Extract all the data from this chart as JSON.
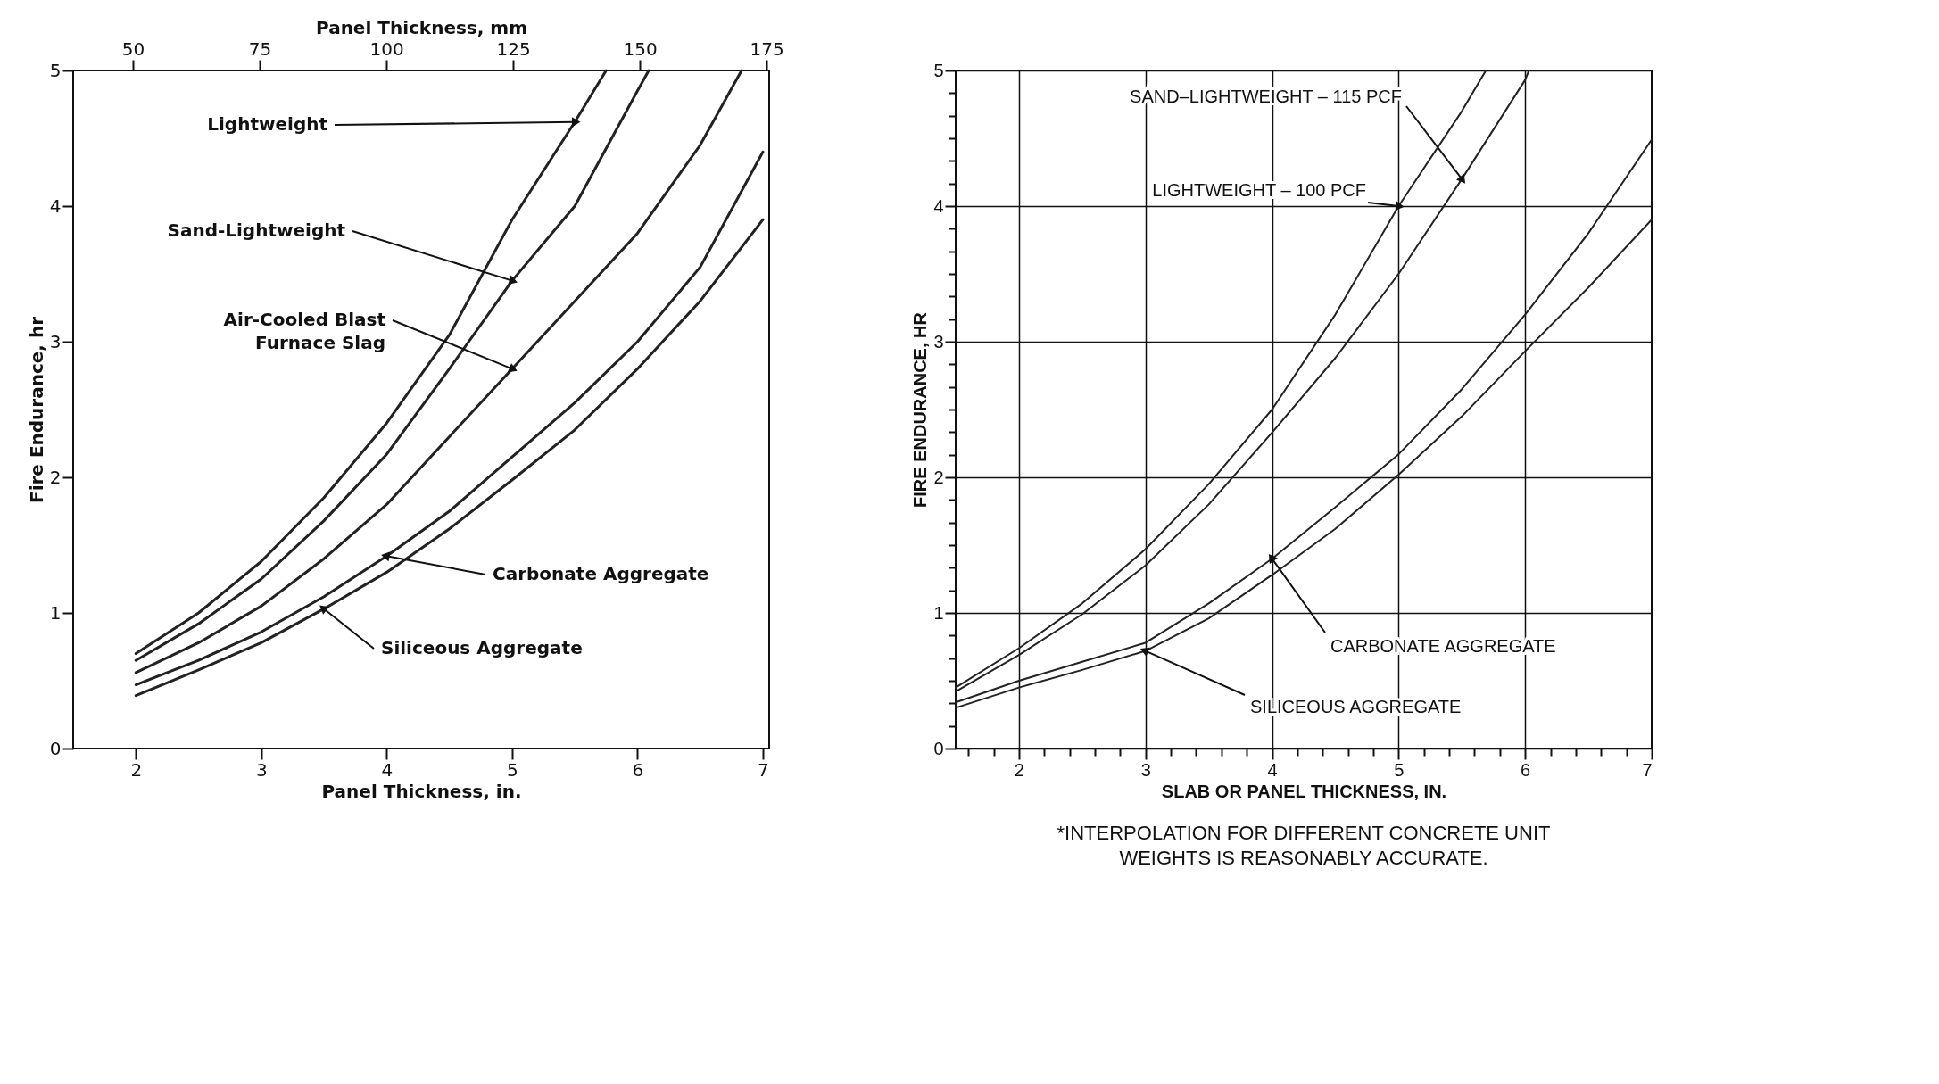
{
  "chart_data": [
    {
      "type": "line",
      "xlabel": "Panel Thickness, in.",
      "ylabel": "Fire Endurance, hr",
      "x2label": "Panel Thickness, mm",
      "xlim": [
        1.5,
        7.05
      ],
      "xticks": [
        2,
        3,
        4,
        5,
        6,
        7
      ],
      "ylim": [
        0,
        5
      ],
      "yticks": [
        0,
        1,
        2,
        3,
        4,
        5
      ],
      "x2lim": [
        38.2,
        175.5
      ],
      "x2ticks": [
        50,
        75,
        100,
        125,
        150,
        175
      ],
      "grid": false,
      "legend": false,
      "marker": "none",
      "line_style": "solid",
      "series": [
        {
          "name": "Lightweight",
          "color": "#222222",
          "x": [
            2,
            2.5,
            3,
            3.5,
            4,
            4.5,
            5,
            5.5,
            5.75
          ],
          "values": [
            0.7,
            1.0,
            1.38,
            1.85,
            2.4,
            3.05,
            3.9,
            4.62,
            5.0
          ]
        },
        {
          "name": "Sand-Lightweight",
          "color": "#222222",
          "x": [
            2,
            2.5,
            3,
            3.5,
            4,
            4.5,
            5,
            5.5,
            6,
            6.09
          ],
          "values": [
            0.65,
            0.92,
            1.25,
            1.68,
            2.17,
            2.8,
            3.45,
            4.0,
            4.85,
            5.0
          ]
        },
        {
          "name": "Air-Cooled Blast Furnace Slag",
          "color": "#222222",
          "x": [
            2,
            2.5,
            3,
            3.5,
            4,
            4.5,
            5,
            5.5,
            6,
            6.5,
            6.83
          ],
          "values": [
            0.56,
            0.78,
            1.05,
            1.4,
            1.8,
            2.3,
            2.8,
            3.3,
            3.8,
            4.45,
            5.0
          ]
        },
        {
          "name": "Carbonate Aggregate",
          "color": "#222222",
          "x": [
            2,
            2.5,
            3,
            3.5,
            4,
            4.5,
            5,
            5.5,
            6,
            6.5,
            7
          ],
          "values": [
            0.47,
            0.65,
            0.86,
            1.12,
            1.42,
            1.75,
            2.15,
            2.55,
            3.0,
            3.55,
            4.4
          ]
        },
        {
          "name": "Siliceous Aggregate",
          "color": "#222222",
          "x": [
            2,
            2.5,
            3,
            3.5,
            4,
            4.5,
            5,
            5.5,
            6,
            6.5,
            7
          ],
          "values": [
            0.39,
            0.58,
            0.78,
            1.03,
            1.3,
            1.62,
            1.98,
            2.35,
            2.8,
            3.3,
            3.9
          ]
        }
      ]
    },
    {
      "type": "line",
      "xlabel": "SLAB OR PANEL THICKNESS, IN.",
      "ylabel": "FIRE ENDURANCE, HR",
      "annotations": [
        "*INTERPOLATION FOR DIFFERENT CONCRETE UNIT  WEIGHTS IS REASONABLY ACCURATE."
      ],
      "xlim": [
        1.5,
        7
      ],
      "xticks": [
        {
          "value": 1.6,
          "label": null
        },
        {
          "value": 1.8,
          "label": null
        },
        2,
        {
          "value": 2.2,
          "label": null
        },
        {
          "value": 2.4,
          "label": null
        },
        {
          "value": 2.6,
          "label": null
        },
        {
          "value": 2.8,
          "label": null
        },
        3,
        {
          "value": 3.2,
          "label": null
        },
        {
          "value": 3.4,
          "label": null
        },
        {
          "value": 3.6,
          "label": null
        },
        {
          "value": 3.8,
          "label": null
        },
        4,
        {
          "value": 4.2,
          "label": null
        },
        {
          "value": 4.4,
          "label": null
        },
        {
          "value": 4.6,
          "label": null
        },
        {
          "value": 4.8,
          "label": null
        },
        5,
        {
          "value": 5.2,
          "label": null
        },
        {
          "value": 5.4,
          "label": null
        },
        {
          "value": 5.6,
          "label": null
        },
        {
          "value": 5.8,
          "label": null
        },
        6,
        {
          "value": 6.2,
          "label": null
        },
        {
          "value": 6.4,
          "label": null
        },
        {
          "value": 6.6,
          "label": null
        },
        {
          "value": 6.8,
          "label": null
        },
        7
      ],
      "ylim": [
        0,
        5
      ],
      "yticks": [
        0,
        {
          "value": 0.1667,
          "label": null
        },
        {
          "value": 0.3333,
          "label": null
        },
        {
          "value": 0.5,
          "label": null
        },
        {
          "value": 0.6667,
          "label": null
        },
        {
          "value": 0.8333,
          "label": null
        },
        1,
        {
          "value": 1.1667,
          "label": null
        },
        {
          "value": 1.3333,
          "label": null
        },
        {
          "value": 1.5,
          "label": null
        },
        {
          "value": 1.6667,
          "label": null
        },
        {
          "value": 1.8333,
          "label": null
        },
        2,
        {
          "value": 2.1667,
          "label": null
        },
        {
          "value": 2.3333,
          "label": null
        },
        {
          "value": 2.5,
          "label": null
        },
        {
          "value": 2.6667,
          "label": null
        },
        {
          "value": 2.8333,
          "label": null
        },
        3,
        {
          "value": 3.1667,
          "label": null
        },
        {
          "value": 3.3333,
          "label": null
        },
        {
          "value": 3.5,
          "label": null
        },
        {
          "value": 3.6667,
          "label": null
        },
        {
          "value": 3.8333,
          "label": null
        },
        4,
        {
          "value": 4.1667,
          "label": null
        },
        {
          "value": 4.3333,
          "label": null
        },
        {
          "value": 4.5,
          "label": null
        },
        {
          "value": 4.6667,
          "label": null
        },
        {
          "value": 4.8333,
          "label": null
        },
        5
      ],
      "grid": true,
      "legend": false,
      "marker": "none",
      "line_style": "solid",
      "series": [
        {
          "name": "LIGHTWEIGHT – 100 PCF",
          "color": "#222222",
          "x": [
            1.5,
            2,
            2.5,
            3,
            3.5,
            4,
            4.5,
            5,
            5.5,
            5.69
          ],
          "values": [
            0.45,
            0.74,
            1.07,
            1.47,
            1.95,
            2.5,
            3.2,
            4.0,
            4.7,
            5.0
          ]
        },
        {
          "name": "SAND–LIGHTWEIGHT – 115 PCF",
          "color": "#222222",
          "x": [
            1.5,
            2,
            2.5,
            3,
            3.5,
            4,
            4.5,
            5,
            5.5,
            6,
            6.03
          ],
          "values": [
            0.42,
            0.69,
            0.99,
            1.35,
            1.8,
            2.33,
            2.88,
            3.5,
            4.2,
            4.93,
            5.0
          ]
        },
        {
          "name": "CARBONATE AGGREGATE",
          "color": "#222222",
          "x": [
            1.5,
            2,
            2.5,
            3,
            3.5,
            4,
            4.5,
            5,
            5.5,
            6,
            6.5,
            7
          ],
          "values": [
            0.34,
            0.5,
            0.64,
            0.78,
            1.07,
            1.4,
            1.78,
            2.17,
            2.65,
            3.2,
            3.8,
            4.49
          ]
        },
        {
          "name": "SILICEOUS AGGREGATE",
          "color": "#222222",
          "x": [
            1.5,
            2,
            2.5,
            3,
            3.5,
            4,
            4.5,
            5,
            5.5,
            6,
            6.5,
            7
          ],
          "values": [
            0.3,
            0.45,
            0.58,
            0.72,
            0.96,
            1.28,
            1.62,
            2.02,
            2.45,
            2.93,
            3.4,
            3.9
          ]
        }
      ]
    }
  ]
}
